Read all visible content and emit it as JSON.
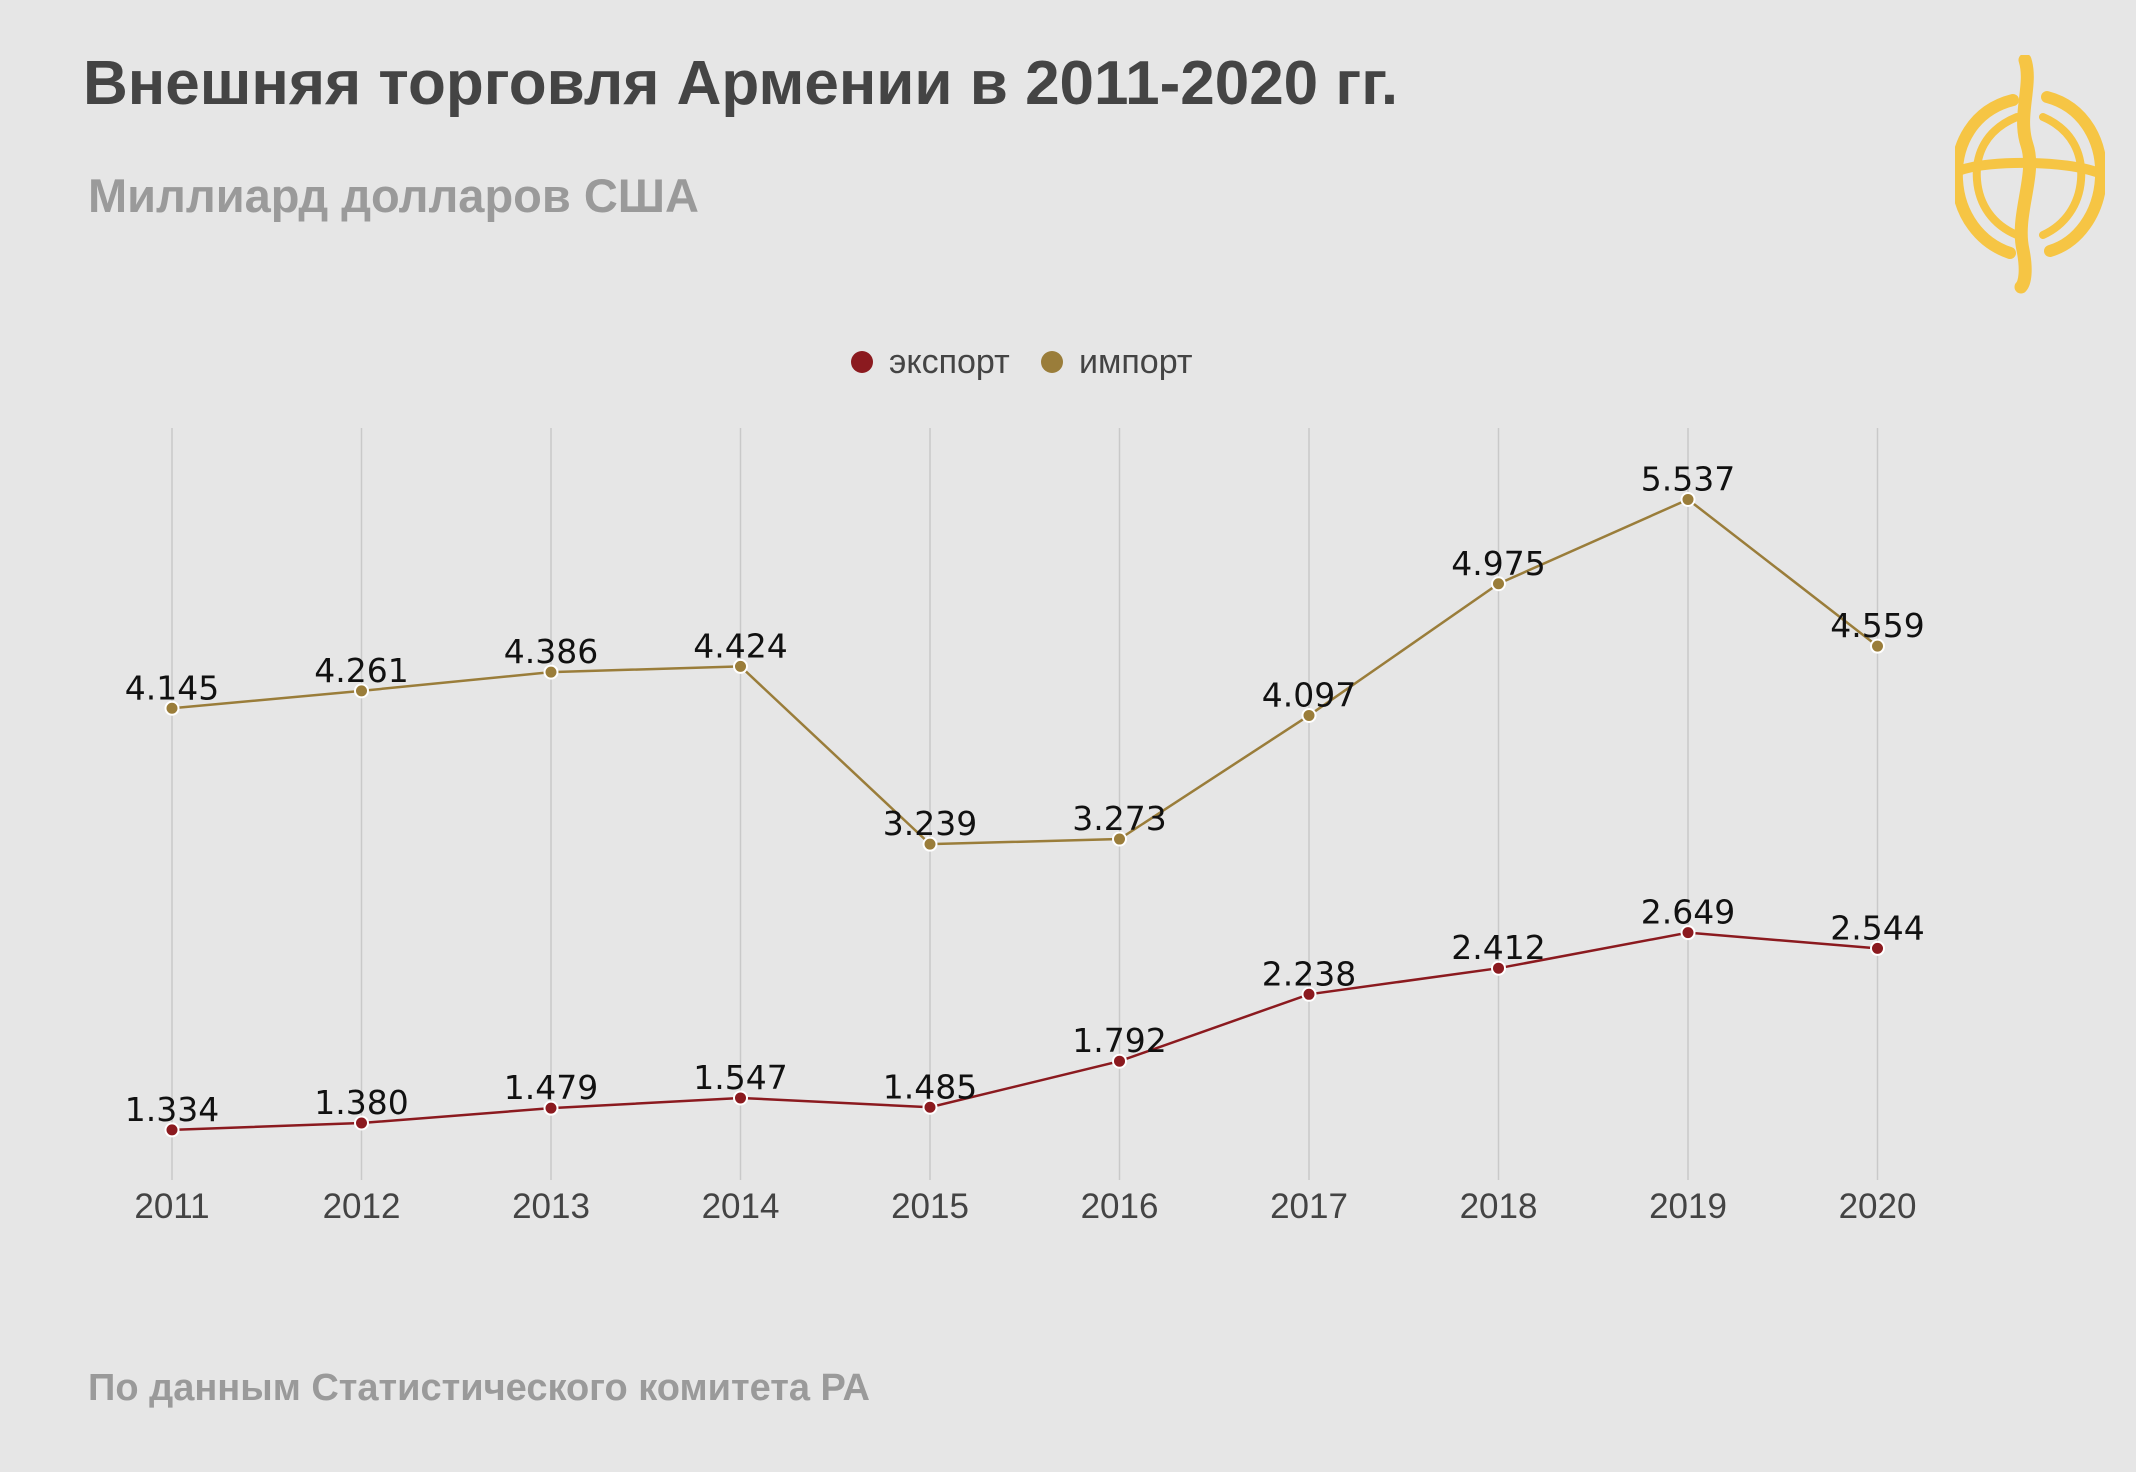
{
  "header": {
    "title": "Внешняя торговля Армении в 2011-2020 гг.",
    "subtitle": "Миллиард долларов США"
  },
  "footer": {
    "source": "По данным Статистического комитета РА"
  },
  "logo": {
    "icon": "yellow-circular-logo-icon",
    "color": "#f6c544"
  },
  "chart_data": {
    "type": "line",
    "title": "Внешняя торговля Армении в 2011-2020 гг.",
    "subtitle": "Миллиард долларов США",
    "xlabel": "",
    "ylabel": "",
    "categories": [
      "2011",
      "2012",
      "2013",
      "2014",
      "2015",
      "2016",
      "2017",
      "2018",
      "2019",
      "2020"
    ],
    "series": [
      {
        "name": "экспорт",
        "color": "#8b1a1f",
        "values": [
          1.334,
          1.38,
          1.479,
          1.547,
          1.485,
          1.792,
          2.238,
          2.412,
          2.649,
          2.544
        ],
        "labels": [
          "1.334",
          "1.380",
          "1.479",
          "1.547",
          "1.485",
          "1.792",
          "2.238",
          "2.412",
          "2.649",
          "2.544"
        ]
      },
      {
        "name": "импорт",
        "color": "#9a7d3a",
        "values": [
          4.145,
          4.261,
          4.386,
          4.424,
          3.239,
          3.273,
          4.097,
          4.975,
          5.537,
          4.559
        ],
        "labels": [
          "4.145",
          "4.261",
          "4.386",
          "4.424",
          "3.239",
          "3.273",
          "4.097",
          "4.975",
          "5.537",
          "4.559"
        ]
      }
    ],
    "ylim": [
      1,
      6
    ],
    "grid": "vertical",
    "legend_position": "top-center"
  }
}
